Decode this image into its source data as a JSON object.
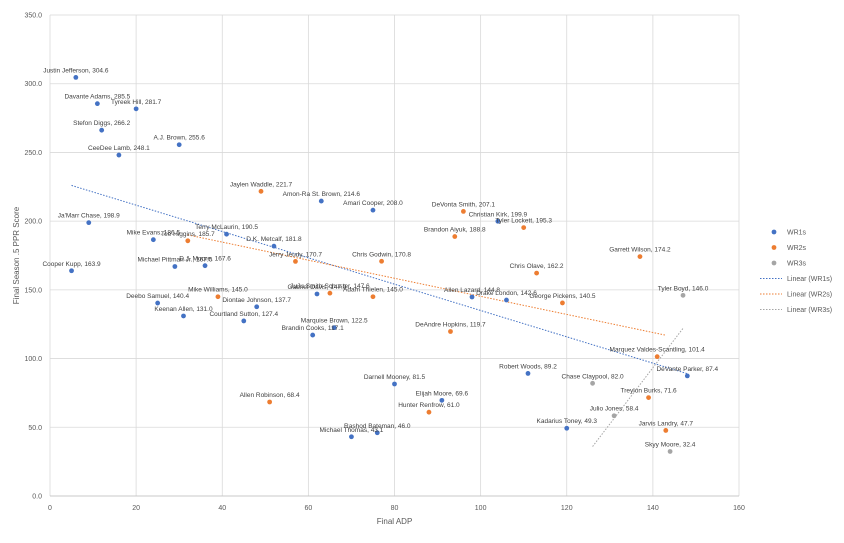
{
  "chart_data": {
    "type": "scatter",
    "title": "",
    "xlabel": "Final ADP",
    "ylabel": "Final Season .5 PPR Score",
    "xlim": [
      0,
      160
    ],
    "ylim": [
      0,
      350
    ],
    "x_ticks": [
      "0",
      "20",
      "40",
      "60",
      "80",
      "100",
      "120",
      "140",
      "160"
    ],
    "y_ticks": [
      "0.0",
      "50.0",
      "100.0",
      "150.0",
      "200.0",
      "250.0",
      "300.0",
      "350.0"
    ],
    "grid": true,
    "legend_position": "right",
    "colors": {
      "WR1s": "#4472c4",
      "WR2s": "#ed7d31",
      "WR3s": "#a5a5a5"
    },
    "series": [
      {
        "name": "WR1s",
        "points": [
          {
            "x": 6,
            "y": 304.6,
            "label": "Justin Jefferson, 304.6"
          },
          {
            "x": 11,
            "y": 285.5,
            "label": "Davante Adams, 285.5"
          },
          {
            "x": 20,
            "y": 281.7,
            "label": "Tyreek Hill, 281.7"
          },
          {
            "x": 12,
            "y": 266.2,
            "label": "Stefon Diggs, 266.2"
          },
          {
            "x": 30,
            "y": 255.6,
            "label": "A.J. Brown, 255.6"
          },
          {
            "x": 16,
            "y": 248.1,
            "label": "CeeDee Lamb, 248.1"
          },
          {
            "x": 63,
            "y": 214.6,
            "label": "Amon-Ra St. Brown, 214.6"
          },
          {
            "x": 75,
            "y": 208.0,
            "label": "Amari Cooper, 208.0"
          },
          {
            "x": 104,
            "y": 199.9,
            "label": "Christian Kirk, 199.9"
          },
          {
            "x": 9,
            "y": 198.9,
            "label": "Ja'Marr Chase, 198.9"
          },
          {
            "x": 41,
            "y": 190.5,
            "label": "Terry McLaurin, 190.5"
          },
          {
            "x": 24,
            "y": 186.5,
            "label": "Mike Evans, 186.5"
          },
          {
            "x": 52,
            "y": 181.8,
            "label": "D.K. Metcalf, 181.8"
          },
          {
            "x": 36,
            "y": 167.6,
            "label": "D.J. Moore, 167.6"
          },
          {
            "x": 29,
            "y": 167.0,
            "label": "Michael Pittman Jr., 167.0"
          },
          {
            "x": 5,
            "y": 163.9,
            "label": "Cooper Kupp, 163.9"
          },
          {
            "x": 62,
            "y": 147.0,
            "label": "Gabriel Davis, 147.0"
          },
          {
            "x": 98,
            "y": 144.8,
            "label": "Allen Lazard, 144.8"
          },
          {
            "x": 106,
            "y": 142.6,
            "label": "Drake London, 142.6"
          },
          {
            "x": 25,
            "y": 140.4,
            "label": "Deebo Samuel, 140.4"
          },
          {
            "x": 48,
            "y": 137.7,
            "label": "Diontae Johnson, 137.7"
          },
          {
            "x": 31,
            "y": 131.0,
            "label": "Keenan Allen, 131.0"
          },
          {
            "x": 45,
            "y": 127.4,
            "label": "Courtland Sutton, 127.4"
          },
          {
            "x": 66,
            "y": 122.5,
            "label": "Marquise Brown, 122.5"
          },
          {
            "x": 61,
            "y": 117.1,
            "label": "Brandin Cooks, 117.1"
          },
          {
            "x": 111,
            "y": 89.2,
            "label": "Robert Woods, 89.2"
          },
          {
            "x": 148,
            "y": 87.4,
            "label": "DeVante Parker, 87.4"
          },
          {
            "x": 80,
            "y": 81.5,
            "label": "Darnell Mooney, 81.5"
          },
          {
            "x": 91,
            "y": 69.6,
            "label": "Elijah Moore, 69.6"
          },
          {
            "x": 120,
            "y": 49.3,
            "label": "Kadarius Toney, 49.3"
          },
          {
            "x": 76,
            "y": 46.0,
            "label": "Rashod Bateman, 46.0"
          },
          {
            "x": 70,
            "y": 43.1,
            "label": "Michael Thomas, 43.1"
          }
        ]
      },
      {
        "name": "WR2s",
        "points": [
          {
            "x": 49,
            "y": 221.7,
            "label": "Jaylen Waddle, 221.7"
          },
          {
            "x": 96,
            "y": 207.1,
            "label": "DeVonta Smith, 207.1"
          },
          {
            "x": 110,
            "y": 195.3,
            "label": "Tyler Lockett, 195.3"
          },
          {
            "x": 94,
            "y": 188.8,
            "label": "Brandon Aiyuk, 188.8"
          },
          {
            "x": 32,
            "y": 185.7,
            "label": "Tee Higgins, 185.7"
          },
          {
            "x": 137,
            "y": 174.2,
            "label": "Garrett Wilson, 174.2"
          },
          {
            "x": 77,
            "y": 170.8,
            "label": "Chris Godwin, 170.8"
          },
          {
            "x": 57,
            "y": 170.7,
            "label": "Jerry Jeudy, 170.7"
          },
          {
            "x": 113,
            "y": 162.2,
            "label": "Chris Olave, 162.2"
          },
          {
            "x": 65,
            "y": 147.6,
            "label": "JuJu Smith-Schuster, 147.6"
          },
          {
            "x": 75,
            "y": 145.0,
            "label": "Adam Thielen, 145.0"
          },
          {
            "x": 39,
            "y": 145.0,
            "label": "Mike Williams, 145.0"
          },
          {
            "x": 119,
            "y": 140.5,
            "label": "George Pickens, 140.5"
          },
          {
            "x": 93,
            "y": 119.7,
            "label": "DeAndre Hopkins, 119.7"
          },
          {
            "x": 141,
            "y": 101.4,
            "label": "Marquez Valdes-Scantling, 101.4"
          },
          {
            "x": 139,
            "y": 71.6,
            "label": "Treylon Burks, 71.6"
          },
          {
            "x": 51,
            "y": 68.4,
            "label": "Allen Robinson, 68.4"
          },
          {
            "x": 88,
            "y": 61.0,
            "label": "Hunter Renfrow, 61.0"
          },
          {
            "x": 143,
            "y": 47.7,
            "label": "Jarvis Landry, 47.7"
          }
        ]
      },
      {
        "name": "WR3s",
        "points": [
          {
            "x": 147,
            "y": 146.0,
            "label": "Tyler Boyd, 146.0"
          },
          {
            "x": 126,
            "y": 82.0,
            "label": "Chase Claypool, 82.0"
          },
          {
            "x": 131,
            "y": 58.4,
            "label": "Julio Jones, 58.4"
          },
          {
            "x": 144,
            "y": 32.4,
            "label": "Skyy Moore, 32.4"
          }
        ]
      }
    ],
    "trendlines": [
      {
        "name": "Linear (WR1s)",
        "series": "WR1s",
        "x": [
          5,
          148
        ],
        "y": [
          226,
          89
        ]
      },
      {
        "name": "Linear (WR2s)",
        "series": "WR2s",
        "x": [
          32,
          143
        ],
        "y": [
          190,
          117
        ]
      },
      {
        "name": "Linear (WR3s)",
        "series": "WR3s",
        "x": [
          126,
          147
        ],
        "y": [
          36,
          122
        ]
      }
    ]
  }
}
